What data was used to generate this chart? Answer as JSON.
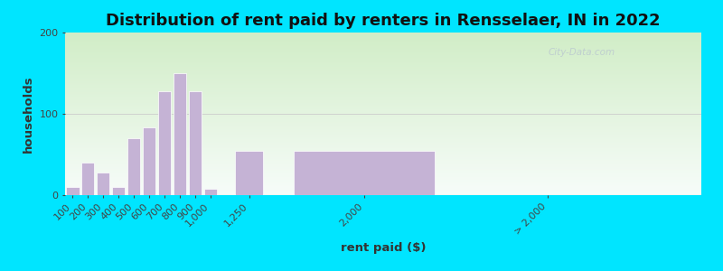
{
  "title": "Distribution of rent paid by renters in Rensselaer, IN in 2022",
  "xlabel": "rent paid ($)",
  "ylabel": "households",
  "bar_color": "#c5b3d5",
  "bar_edgecolor": "#ffffff",
  "background_outer": "#00e5ff",
  "ylim": [
    0,
    200
  ],
  "yticks": [
    0,
    100,
    200
  ],
  "title_fontsize": 13,
  "axis_label_fontsize": 9.5,
  "tick_fontsize": 8,
  "bar_positions": [
    100,
    200,
    300,
    400,
    500,
    600,
    700,
    800,
    900,
    1000,
    1250,
    2000
  ],
  "bar_widths": [
    90,
    90,
    90,
    90,
    90,
    90,
    90,
    90,
    90,
    90,
    200,
    1000
  ],
  "values": [
    10,
    40,
    28,
    10,
    70,
    83,
    128,
    150,
    128,
    8,
    55,
    55
  ],
  "tick_positions": [
    100,
    200,
    300,
    400,
    500,
    600,
    700,
    800,
    900,
    1000,
    1250,
    2000,
    3200
  ],
  "tick_labels": [
    "100",
    "200",
    "300",
    "400",
    "500",
    "600",
    "700",
    "800",
    "900",
    "1,000",
    "1,250",
    "2,000",
    "> 2,000"
  ],
  "xlim": [
    50,
    4200
  ],
  "watermark": "City-Data.com"
}
